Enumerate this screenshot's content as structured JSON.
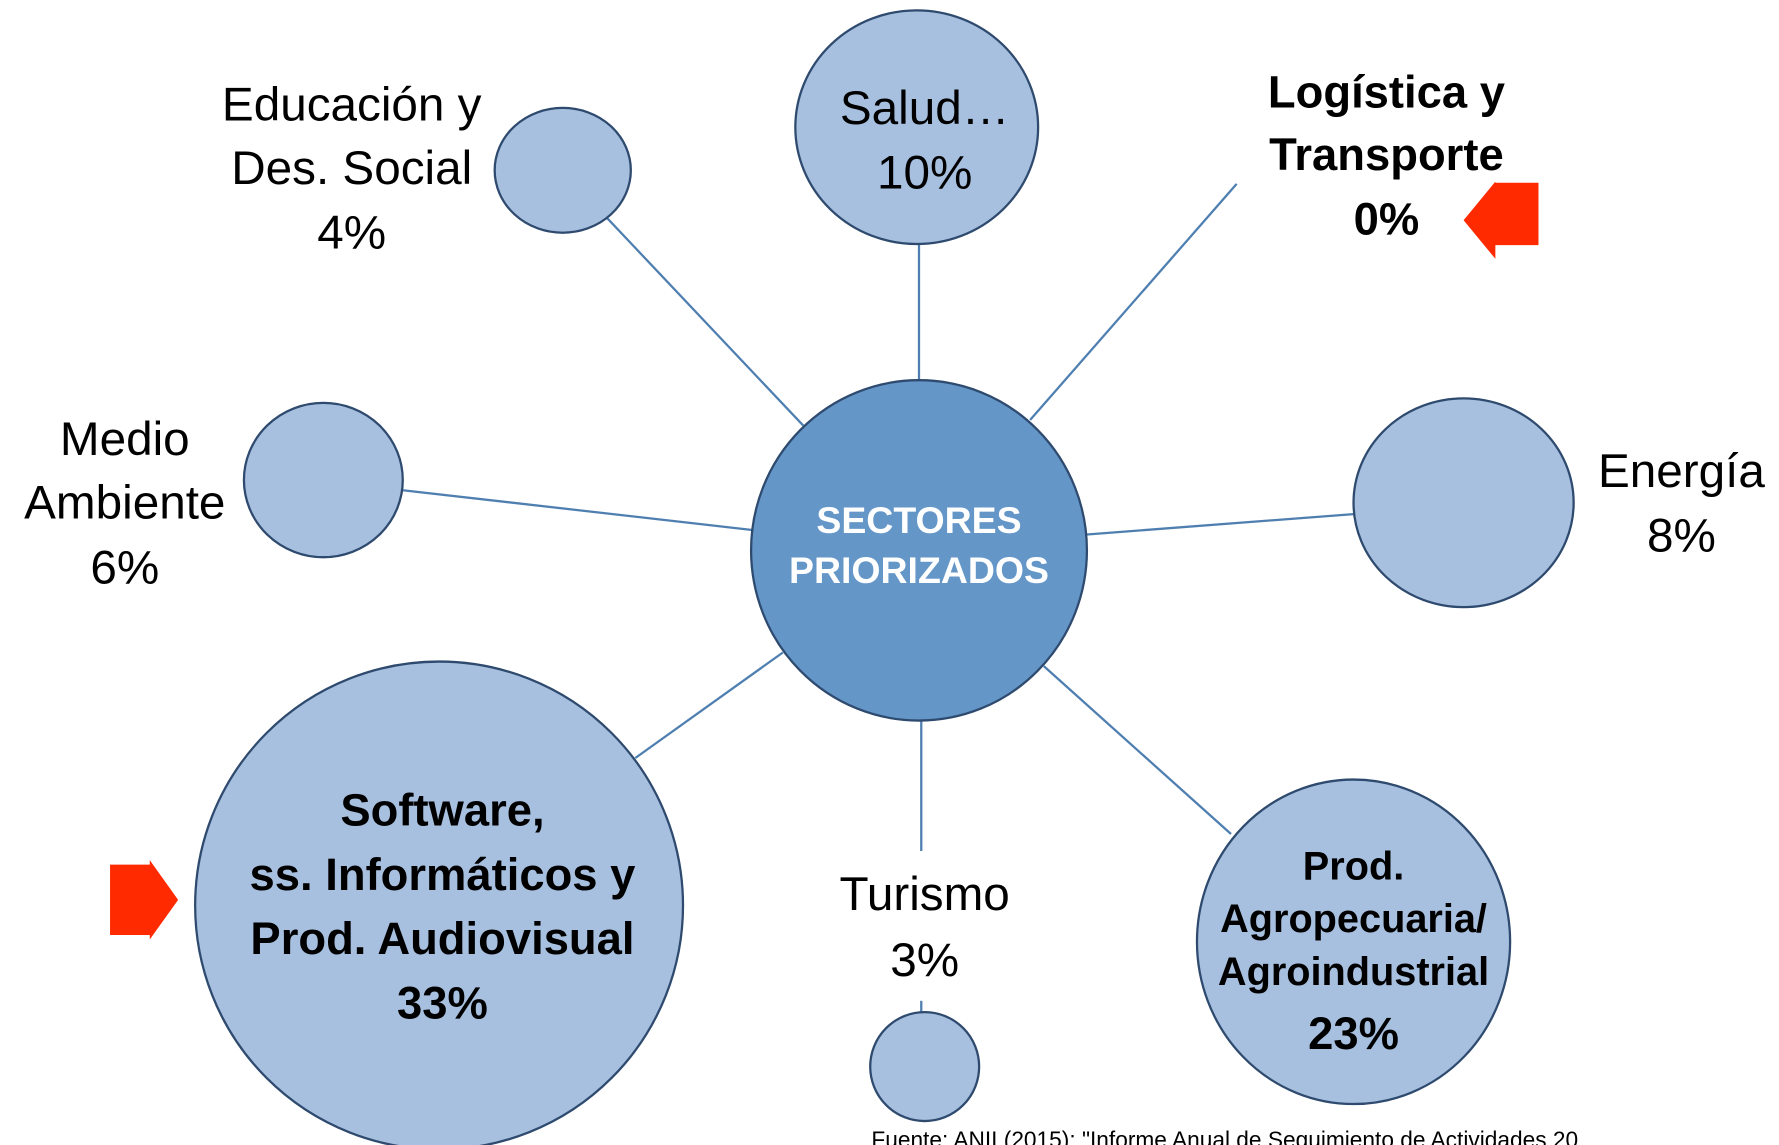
{
  "center": {
    "lines": [
      "SECTORES",
      "PRIORIZADOS"
    ]
  },
  "nodes": [
    {
      "lines": [
        "Educación y",
        "Des. Social"
      ],
      "value": "4%"
    },
    {
      "lines": [
        "Salud…"
      ],
      "value": "10%"
    },
    {
      "lines": [
        "Logística y",
        "Transporte"
      ],
      "value": "0%"
    },
    {
      "lines": [
        "Medio",
        "Ambiente"
      ],
      "value": "6%"
    },
    {
      "lines": [
        "Energía"
      ],
      "value": "8%"
    },
    {
      "lines": [
        "Software,",
        "ss. Informáticos y",
        "Prod. Audiovisual"
      ],
      "value": "33%"
    },
    {
      "lines": [
        "Turismo"
      ],
      "value": "3%"
    },
    {
      "lines": [
        "Prod.",
        "Agropecuaria/",
        "Agroindustrial"
      ],
      "value": "23%"
    }
  ],
  "source": "Fuente: ANII (2015): \"Informe Anual de Seguimiento de Actividades 20"
}
